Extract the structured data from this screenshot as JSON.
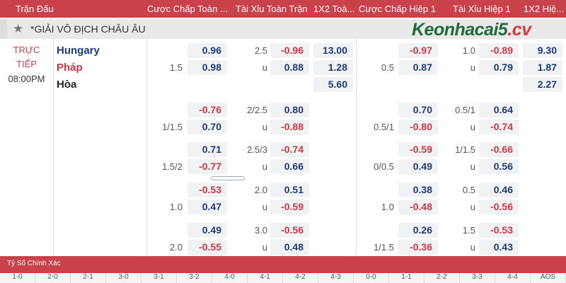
{
  "header": {
    "cols": [
      "Trận Đấu",
      "Cược Chấp Toàn ...",
      "Tài Xỉu Toàn Trận",
      "1X2 Toà...",
      "Cược Chấp Hiệp 1",
      "Tài Xỉu Hiệp 1",
      "1X2 Hiệ..."
    ]
  },
  "league": {
    "name": "*GIẢI VÔ ĐỊCH CHÂU ÂU",
    "logo_main": "Keonhacai5",
    "logo_suffix": ".cv"
  },
  "match": {
    "status_line1": "TRỰC",
    "status_line2": "TIẾP",
    "time": "08:00PM",
    "home": "Hungary",
    "away": "Pháp",
    "draw": "Hòa",
    "home_color": "#1f3a7a",
    "away_color": "#d03640"
  },
  "groups": [
    {
      "home": [
        [
          "",
          "0.96"
        ],
        [
          "2.5",
          "-0.96"
        ],
        [
          "",
          "13.00"
        ],
        [
          "",
          "-0.97"
        ],
        [
          "1.0",
          "-0.89"
        ],
        [
          "",
          "9.30"
        ]
      ],
      "away": [
        [
          "1.5",
          "0.98"
        ],
        [
          "u",
          "0.88"
        ],
        [
          "",
          "1.28"
        ],
        [
          "0.5",
          "0.87"
        ],
        [
          "u",
          "0.79"
        ],
        [
          "",
          "1.87"
        ]
      ],
      "draw": [
        "5.60",
        "2.27"
      ]
    },
    {
      "home": [
        [
          "",
          "-0.76"
        ],
        [
          "2/2.5",
          "0.80"
        ],
        null,
        [
          "",
          "0.70"
        ],
        [
          "0.5/1",
          "0.64"
        ],
        null
      ],
      "away": [
        [
          "1/1.5",
          "0.70"
        ],
        [
          "u",
          "-0.88"
        ],
        null,
        [
          "0.5/1",
          "-0.80"
        ],
        [
          "u",
          "-0.74"
        ],
        null
      ]
    },
    {
      "home": [
        [
          "",
          "0.71"
        ],
        [
          "2.5/3",
          "-0.74"
        ],
        null,
        [
          "",
          "-0.59"
        ],
        [
          "1/1.5",
          "-0.66"
        ],
        null
      ],
      "away": [
        [
          "1.5/2",
          "-0.77"
        ],
        [
          "u",
          "0.66"
        ],
        null,
        [
          "0/0.5",
          "0.49"
        ],
        [
          "u",
          "0.56"
        ],
        null
      ]
    },
    {
      "home": [
        [
          "",
          "-0.53"
        ],
        [
          "2.0",
          "0.51"
        ],
        null,
        [
          "",
          "0.38"
        ],
        [
          "0.5",
          "0.46"
        ],
        null
      ],
      "away": [
        [
          "1.0",
          "0.47"
        ],
        [
          "u",
          "-0.59"
        ],
        null,
        [
          "1.0",
          "-0.48"
        ],
        [
          "u",
          "-0.56"
        ],
        null
      ]
    },
    {
      "home": [
        [
          "",
          "0.49"
        ],
        [
          "3.0",
          "-0.56"
        ],
        null,
        [
          "",
          "0.26"
        ],
        [
          "1.5",
          "-0.53"
        ],
        null
      ],
      "away": [
        [
          "2.0",
          "-0.55"
        ],
        [
          "u",
          "0.48"
        ],
        null,
        [
          "1/1.5",
          "-0.36"
        ],
        [
          "u",
          "0.43"
        ],
        null
      ]
    }
  ],
  "correct_score": {
    "title": "Tỷ Số Chính Xác",
    "scores": [
      "1-0",
      "2-0",
      "2-1",
      "3-0",
      "3-1",
      "3-2",
      "4-0",
      "4-1",
      "4-2",
      "4-3",
      "0-0",
      "1-1",
      "2-2",
      "3-3",
      "4-4",
      "AOS"
    ]
  }
}
